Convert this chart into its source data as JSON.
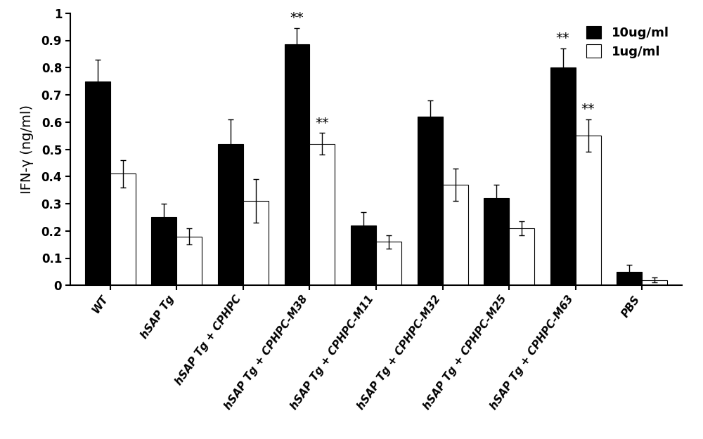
{
  "categories": [
    "WT",
    "hSAP Tg",
    "hSAP Tg + CPHPC",
    "hSAP Tg + CPHPC-M38",
    "hSAP Tg + CPHPC-M11",
    "hSAP Tg + CPHPC-M32",
    "hSAP Tg + CPHPC-M25",
    "hSAP Tg + CPHPC-M63",
    "PBS"
  ],
  "values_10ug": [
    0.75,
    0.25,
    0.52,
    0.885,
    0.22,
    0.62,
    0.32,
    0.8,
    0.05
  ],
  "values_1ug": [
    0.41,
    0.18,
    0.31,
    0.52,
    0.16,
    0.37,
    0.21,
    0.55,
    0.02
  ],
  "errors_10ug": [
    0.08,
    0.05,
    0.09,
    0.06,
    0.05,
    0.06,
    0.05,
    0.07,
    0.025
  ],
  "errors_1ug": [
    0.05,
    0.03,
    0.08,
    0.04,
    0.025,
    0.06,
    0.025,
    0.06,
    0.01
  ],
  "sig_10ug": [
    false,
    false,
    false,
    true,
    false,
    false,
    false,
    true,
    false
  ],
  "sig_1ug": [
    false,
    false,
    false,
    true,
    false,
    false,
    false,
    true,
    false
  ],
  "bar_color_10ug": "#000000",
  "bar_color_1ug": "#ffffff",
  "bar_edgecolor": "#000000",
  "ylabel": "IFN-γ (ng/ml)",
  "ylim": [
    0,
    1.0
  ],
  "ytick_vals": [
    0,
    0.1,
    0.2,
    0.3,
    0.4,
    0.5,
    0.6,
    0.7,
    0.8,
    0.9,
    1
  ],
  "ytick_labels": [
    "0",
    "0.1",
    "0.2",
    "0.3",
    "0.4",
    "0.5",
    "0.6",
    "0.7",
    "0.8",
    "0.9",
    "1"
  ],
  "legend_labels": [
    "10ug/ml",
    "1ug/ml"
  ],
  "bar_width": 0.38,
  "background_color": "#ffffff",
  "sig_text": "**",
  "sig_fontsize": 14,
  "ylabel_fontsize": 14,
  "ytick_fontsize": 12,
  "xtick_fontsize": 11,
  "legend_fontsize": 13
}
